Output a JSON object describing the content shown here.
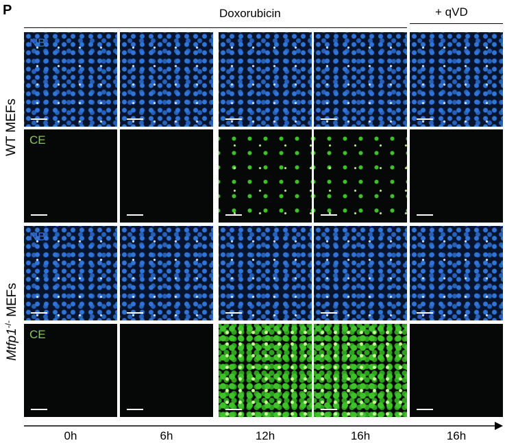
{
  "panel_label": "P",
  "header": {
    "treatment": "Doxorubicin",
    "inhibitor": "+ qVD"
  },
  "groups": [
    {
      "label": {
        "name": "WT MEFs"
      },
      "stains": [
        "NB",
        "CE"
      ]
    },
    {
      "label": {
        "gene": "Mtfp1",
        "genotype": "-/-",
        "suffix": " MEFs"
      },
      "stains": [
        "NB",
        "CE"
      ]
    }
  ],
  "timepoints": [
    "0h",
    "6h",
    "12h",
    "16h",
    "16h"
  ]
}
